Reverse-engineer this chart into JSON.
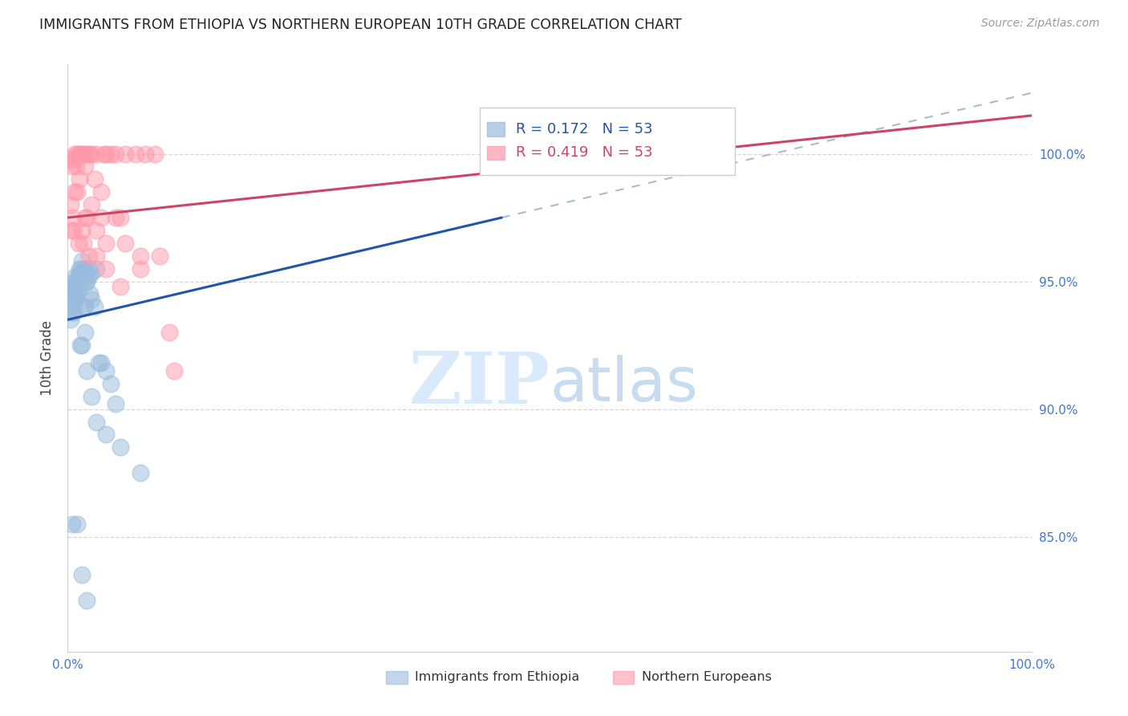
{
  "title": "IMMIGRANTS FROM ETHIOPIA VS NORTHERN EUROPEAN 10TH GRADE CORRELATION CHART",
  "source": "Source: ZipAtlas.com",
  "ylabel": "10th Grade",
  "right_yticks": [
    85.0,
    90.0,
    95.0,
    100.0
  ],
  "xlim": [
    0.0,
    100.0
  ],
  "ylim": [
    80.5,
    103.5
  ],
  "legend_blue_r": "R = 0.172",
  "legend_blue_n": "N = 53",
  "legend_pink_r": "R = 0.419",
  "legend_pink_n": "N = 53",
  "blue_scatter_color": "#99BBDD",
  "pink_scatter_color": "#FF99AA",
  "blue_line_color": "#2255AA",
  "pink_line_color": "#CC4466",
  "axis_tick_color": "#4477CC",
  "grid_color": "#CCCCCC",
  "title_color": "#222222",
  "source_color": "#999999",
  "watermark_color": "#D8EAFC",
  "blue_scatter_x": [
    0.4,
    0.5,
    0.6,
    0.6,
    0.7,
    0.8,
    0.9,
    1.0,
    1.1,
    1.2,
    1.3,
    1.4,
    1.5,
    1.6,
    1.7,
    1.8,
    1.9,
    2.0,
    2.1,
    2.2,
    2.3,
    2.4,
    2.5,
    2.8,
    3.0,
    3.2,
    3.5,
    4.0,
    4.5,
    5.0,
    0.3,
    0.4,
    0.5,
    0.6,
    0.7,
    0.8,
    0.9,
    1.0,
    1.1,
    1.2,
    1.3,
    1.5,
    1.8,
    2.0,
    2.5,
    3.0,
    4.0,
    5.5,
    7.5,
    0.5,
    1.0,
    1.5,
    2.0
  ],
  "blue_scatter_y": [
    94.5,
    94.8,
    95.0,
    94.3,
    94.8,
    95.2,
    95.0,
    95.0,
    95.2,
    94.7,
    95.3,
    95.5,
    95.8,
    94.0,
    95.5,
    94.0,
    95.0,
    95.0,
    95.2,
    95.5,
    94.5,
    95.3,
    94.3,
    94.0,
    95.5,
    91.8,
    91.8,
    91.5,
    91.0,
    90.2,
    93.5,
    93.8,
    94.0,
    93.8,
    94.2,
    94.5,
    94.8,
    94.5,
    95.2,
    95.5,
    92.5,
    92.5,
    93.0,
    91.5,
    90.5,
    89.5,
    89.0,
    88.5,
    87.5,
    85.5,
    85.5,
    83.5,
    82.5
  ],
  "pink_scatter_x": [
    0.3,
    0.5,
    0.7,
    0.8,
    0.9,
    1.0,
    1.2,
    1.4,
    1.5,
    1.7,
    1.8,
    2.0,
    2.2,
    2.5,
    2.8,
    3.0,
    3.5,
    3.8,
    4.0,
    4.5,
    5.0,
    5.5,
    6.0,
    7.0,
    8.0,
    0.3,
    0.5,
    0.7,
    1.0,
    1.2,
    1.5,
    1.8,
    2.0,
    2.5,
    3.0,
    3.5,
    4.0,
    5.0,
    6.0,
    7.5,
    9.0,
    0.4,
    0.6,
    1.1,
    1.6,
    2.2,
    3.0,
    4.0,
    5.5,
    7.5,
    9.5,
    10.5,
    11.0
  ],
  "pink_scatter_y": [
    99.8,
    99.5,
    100.0,
    99.8,
    99.5,
    100.0,
    100.0,
    100.0,
    100.0,
    100.0,
    99.5,
    100.0,
    100.0,
    100.0,
    99.0,
    100.0,
    98.5,
    100.0,
    100.0,
    100.0,
    100.0,
    97.5,
    100.0,
    100.0,
    100.0,
    98.0,
    97.5,
    98.5,
    98.5,
    99.0,
    97.0,
    97.5,
    97.5,
    98.0,
    97.0,
    97.5,
    96.5,
    97.5,
    96.5,
    96.0,
    100.0,
    97.0,
    97.0,
    96.5,
    96.5,
    96.0,
    96.0,
    95.5,
    94.8,
    95.5,
    96.0,
    93.0,
    91.5
  ],
  "blue_trend_x0": 0.0,
  "blue_trend_y0": 93.5,
  "blue_trend_x1": 45.0,
  "blue_trend_y1": 97.5,
  "blue_dash_x0": 45.0,
  "blue_dash_x1": 100.0,
  "pink_trend_x0": 0.0,
  "pink_trend_y0": 97.5,
  "pink_trend_x1": 100.0,
  "pink_trend_y1": 101.5,
  "watermark_zip": "ZIP",
  "watermark_atlas": "atlas",
  "title_fontsize": 12.5,
  "source_fontsize": 10,
  "legend_fontsize": 13,
  "ytick_fontsize": 11,
  "xtick_fontsize": 11
}
